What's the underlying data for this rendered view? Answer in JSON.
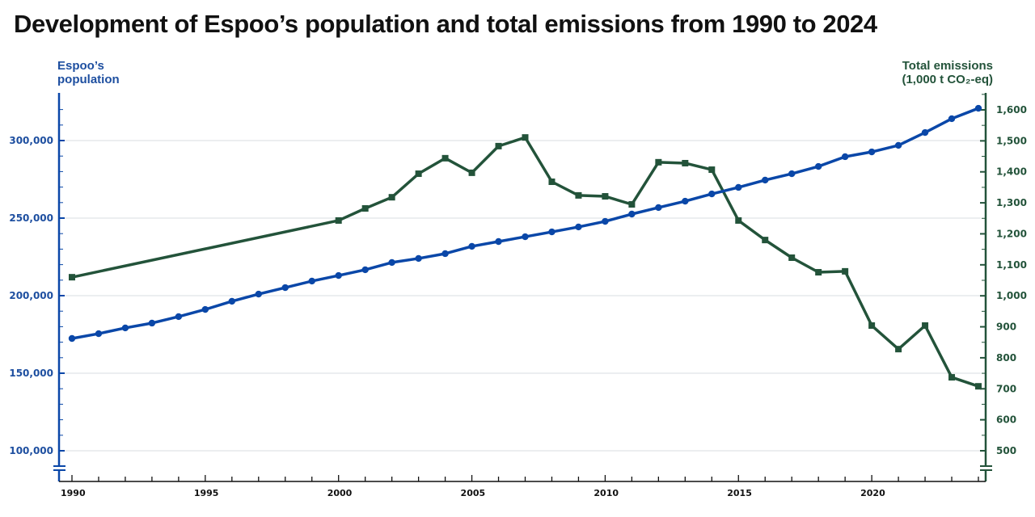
{
  "chart_data": {
    "type": "line",
    "title": "Development of Espoo’s population and total emissions from 1990 to 2024",
    "xlabel": "",
    "ylabel_left": "Espoo’s population",
    "ylabel_left_lines": [
      "Espoo’s",
      "population"
    ],
    "ylabel_right": "Total emissions (1,000 t CO₂-eq)",
    "ylabel_right_lines": [
      "Total emissions",
      "(1,000 t CO₂-eq)"
    ],
    "x_range": [
      1990,
      2024
    ],
    "x_ticks": [
      1990,
      1995,
      2000,
      2005,
      2010,
      2015,
      2020
    ],
    "x_tick_labels": [
      "1990",
      "1995",
      "2000",
      "2005",
      "2010",
      "2015",
      "2020"
    ],
    "ylim_left": [
      100000,
      300000
    ],
    "y_ticks_left": [
      100000,
      150000,
      200000,
      250000,
      300000
    ],
    "y_tick_labels_left": [
      "100,000",
      "150,000",
      "200,000",
      "250,000",
      "300,000"
    ],
    "ylim_right": [
      500,
      1600
    ],
    "y_ticks_right": [
      500,
      600,
      700,
      800,
      900,
      1000,
      1100,
      1200,
      1300,
      1400,
      1500,
      1600
    ],
    "y_tick_labels_right": [
      "500",
      "600",
      "700",
      "800",
      "900",
      "1,000",
      "1,100",
      "1,200",
      "1,300",
      "1,400",
      "1,500",
      "1,600"
    ],
    "axis_break": true,
    "grid": true,
    "legend": "none (axis titles colored)",
    "series": [
      {
        "name": "Espoo’s population",
        "axis": "left",
        "color": "#0a47a8",
        "marker": "circle",
        "x": [
          1990,
          1991,
          1992,
          1993,
          1994,
          1995,
          1996,
          1997,
          1998,
          1999,
          2000,
          2001,
          2002,
          2003,
          2004,
          2005,
          2006,
          2007,
          2008,
          2009,
          2010,
          2011,
          2012,
          2013,
          2014,
          2015,
          2016,
          2017,
          2018,
          2019,
          2020,
          2021,
          2022,
          2023,
          2024
        ],
        "values": [
          172400,
          175500,
          179200,
          182300,
          186500,
          191100,
          196400,
          201000,
          205200,
          209400,
          213000,
          216700,
          221400,
          224000,
          227100,
          231800,
          234900,
          238000,
          241100,
          244300,
          247900,
          252600,
          256800,
          260900,
          265600,
          269800,
          274500,
          278600,
          283300,
          289600,
          292700,
          296900,
          305200,
          314100,
          320800
        ]
      },
      {
        "name": "Total emissions (1,000 t CO₂-eq)",
        "axis": "right",
        "color": "#23533a",
        "marker": "square",
        "x": [
          1990,
          2000,
          2001,
          2002,
          2003,
          2004,
          2005,
          2006,
          2007,
          2008,
          2009,
          2010,
          2011,
          2012,
          2013,
          2014,
          2015,
          2016,
          2017,
          2018,
          2019,
          2020,
          2021,
          2022,
          2023,
          2024
        ],
        "values": [
          1060,
          1243,
          1282,
          1318,
          1394,
          1444,
          1397,
          1483,
          1511,
          1368,
          1324,
          1321,
          1295,
          1431,
          1428,
          1407,
          1243,
          1180,
          1123,
          1076,
          1079,
          904,
          828,
          904,
          737,
          708
        ]
      }
    ]
  }
}
